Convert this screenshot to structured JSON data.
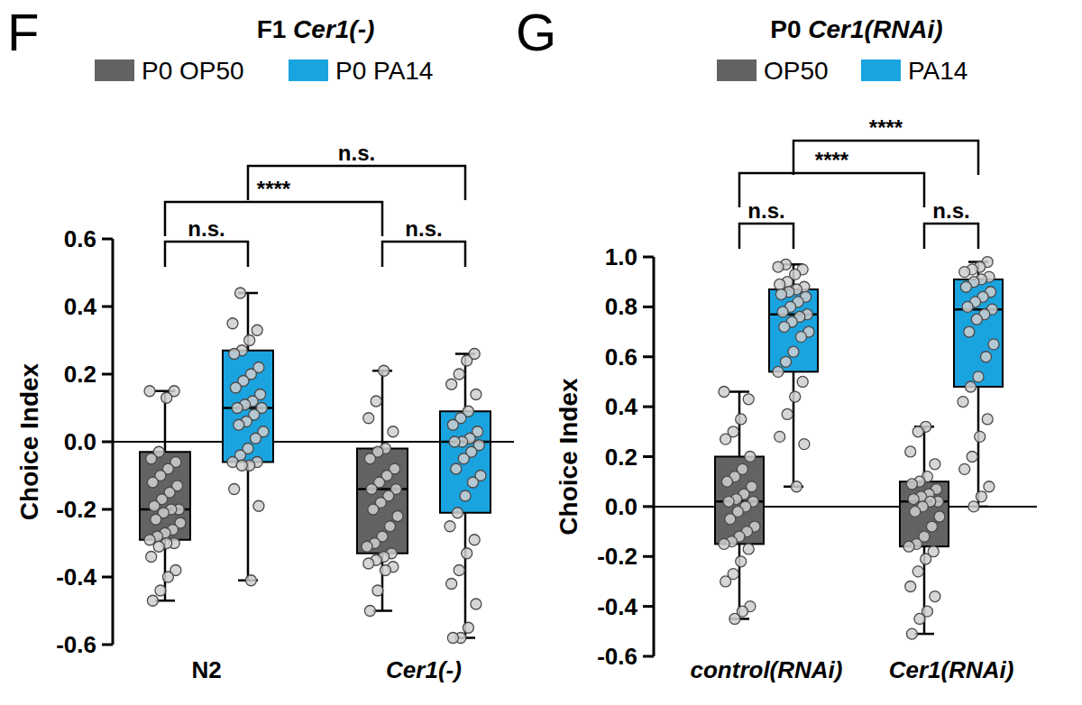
{
  "chart_data": [
    {
      "type": "box",
      "panel": "F",
      "title": "F1 Cer1(-)",
      "y_label": "Choice Index",
      "categories": [
        "N2",
        "Cer1(-)"
      ],
      "ylim": [
        -0.6,
        0.6
      ],
      "yticks": [
        -0.6,
        -0.4,
        -0.2,
        {
          "value": 0,
          "label": "0.0"
        },
        0.2,
        0.4,
        0.6
      ],
      "reference_line": 0,
      "legend": "top",
      "series": [
        {
          "name": "P0 OP50",
          "color": "#636363",
          "values": [
            {
              "min": -0.47,
              "q1": -0.29,
              "median": -0.2,
              "q3": -0.03,
              "max": 0.15,
              "points": [
                0.15,
                0.15,
                0.13,
                -0.03,
                -0.05,
                -0.06,
                -0.08,
                -0.1,
                -0.12,
                -0.13,
                -0.15,
                -0.17,
                -0.19,
                -0.2,
                -0.2,
                -0.21,
                -0.23,
                -0.24,
                -0.26,
                -0.27,
                -0.28,
                -0.29,
                -0.3,
                -0.3,
                -0.31,
                -0.34,
                -0.38,
                -0.4,
                -0.44,
                -0.47
              ]
            },
            {
              "min": -0.5,
              "q1": -0.33,
              "median": -0.14,
              "q3": -0.02,
              "max": 0.21,
              "points": [
                0.21,
                0.12,
                0.07,
                0.03,
                -0.02,
                -0.03,
                -0.05,
                -0.08,
                -0.1,
                -0.12,
                -0.14,
                -0.14,
                -0.16,
                -0.18,
                -0.2,
                -0.22,
                -0.25,
                -0.28,
                -0.3,
                -0.31,
                -0.33,
                -0.34,
                -0.35,
                -0.36,
                -0.37,
                -0.38,
                -0.44,
                -0.5
              ]
            }
          ]
        },
        {
          "name": "P0 PA14",
          "color": "#19a4e0",
          "values": [
            {
              "min": -0.41,
              "q1": -0.06,
              "median": 0.1,
              "q3": 0.27,
              "max": 0.44,
              "points": [
                0.44,
                0.35,
                0.33,
                0.3,
                0.27,
                0.26,
                0.22,
                0.2,
                0.18,
                0.16,
                0.14,
                0.12,
                0.11,
                0.1,
                0.1,
                0.08,
                0.06,
                0.05,
                0.03,
                0.01,
                -0.02,
                -0.04,
                -0.06,
                -0.06,
                -0.07,
                -0.07,
                -0.14,
                -0.19,
                -0.41
              ]
            },
            {
              "min": -0.58,
              "q1": -0.21,
              "median": 0,
              "q3": 0.09,
              "max": 0.26,
              "points": [
                0.26,
                0.24,
                0.2,
                0.17,
                0.14,
                0.09,
                0.07,
                0.05,
                0.03,
                0.01,
                0,
                0,
                -0.01,
                -0.03,
                -0.05,
                -0.08,
                -0.1,
                -0.12,
                -0.16,
                -0.21,
                -0.25,
                -0.29,
                -0.33,
                -0.38,
                -0.42,
                -0.48,
                -0.55,
                -0.58,
                -0.58
              ]
            }
          ]
        }
      ],
      "comparisons": [
        {
          "pair": [
            [
              0,
              0
            ],
            [
              1,
              0
            ]
          ],
          "label": "****"
        },
        {
          "pair": [
            [
              0,
              1
            ],
            [
              1,
              1
            ]
          ],
          "label": "n.s."
        },
        {
          "pair": [
            [
              0,
              0
            ],
            [
              0,
              1
            ]
          ],
          "label": "n.s."
        },
        {
          "pair": [
            [
              1,
              0
            ],
            [
              1,
              1
            ]
          ],
          "label": "n.s."
        }
      ]
    },
    {
      "type": "box",
      "panel": "G",
      "title": "P0 Cer1(RNAi)",
      "y_label": "Choice Index",
      "categories": [
        "control(RNAi)",
        "Cer1(RNAi)"
      ],
      "ylim": [
        -0.6,
        1.0
      ],
      "yticks": [
        -0.6,
        -0.4,
        -0.2,
        {
          "value": 0,
          "label": "0.0"
        },
        0.2,
        0.4,
        0.6,
        0.8,
        {
          "value": 1,
          "label": "1.0"
        }
      ],
      "reference_line": 0,
      "legend": "top",
      "series": [
        {
          "name": "OP50",
          "color": "#636363",
          "values": [
            {
              "min": -0.45,
              "q1": -0.15,
              "median": 0.02,
              "q3": 0.2,
              "max": 0.46,
              "points": [
                0.46,
                0.43,
                0.35,
                0.3,
                0.27,
                0.2,
                0.15,
                0.12,
                0.1,
                0.08,
                0.05,
                0.03,
                0.02,
                0.02,
                0,
                -0.02,
                -0.05,
                -0.08,
                -0.1,
                -0.12,
                -0.14,
                -0.15,
                -0.17,
                -0.22,
                -0.27,
                -0.3,
                -0.4,
                -0.42,
                -0.45
              ]
            },
            {
              "min": -0.51,
              "q1": -0.16,
              "median": 0.02,
              "q3": 0.1,
              "max": 0.32,
              "points": [
                0.32,
                0.3,
                0.22,
                0.17,
                0.12,
                0.1,
                0.09,
                0.07,
                0.05,
                0.04,
                0.03,
                0.02,
                0.02,
                0,
                -0.02,
                -0.04,
                -0.08,
                -0.12,
                -0.15,
                -0.16,
                -0.18,
                -0.21,
                -0.26,
                -0.32,
                -0.36,
                -0.42,
                -0.45,
                -0.51
              ]
            }
          ]
        },
        {
          "name": "PA14",
          "color": "#19a4e0",
          "values": [
            {
              "min": 0.08,
              "q1": 0.54,
              "median": 0.77,
              "q3": 0.87,
              "max": 0.97,
              "points": [
                0.97,
                0.96,
                0.95,
                0.93,
                0.9,
                0.89,
                0.88,
                0.87,
                0.86,
                0.85,
                0.84,
                0.82,
                0.8,
                0.78,
                0.77,
                0.76,
                0.74,
                0.72,
                0.7,
                0.68,
                0.62,
                0.58,
                0.54,
                0.5,
                0.44,
                0.37,
                0.28,
                0.25,
                0.08
              ]
            },
            {
              "min": 0,
              "q1": 0.48,
              "median": 0.79,
              "q3": 0.91,
              "max": 0.98,
              "points": [
                0.98,
                0.96,
                0.95,
                0.94,
                0.92,
                0.91,
                0.9,
                0.88,
                0.86,
                0.84,
                0.82,
                0.8,
                0.79,
                0.77,
                0.75,
                0.7,
                0.65,
                0.6,
                0.52,
                0.48,
                0.42,
                0.35,
                0.28,
                0.2,
                0.15,
                0.08,
                0.04,
                0
              ]
            }
          ]
        }
      ],
      "comparisons": [
        {
          "pair": [
            [
              0,
              0
            ],
            [
              1,
              0
            ]
          ],
          "label": "****"
        },
        {
          "pair": [
            [
              0,
              1
            ],
            [
              1,
              1
            ]
          ],
          "label": "****"
        },
        {
          "pair": [
            [
              0,
              0
            ],
            [
              0,
              1
            ]
          ],
          "label": "n.s."
        },
        {
          "pair": [
            [
              1,
              0
            ],
            [
              1,
              1
            ]
          ],
          "label": "n.s."
        }
      ]
    }
  ]
}
